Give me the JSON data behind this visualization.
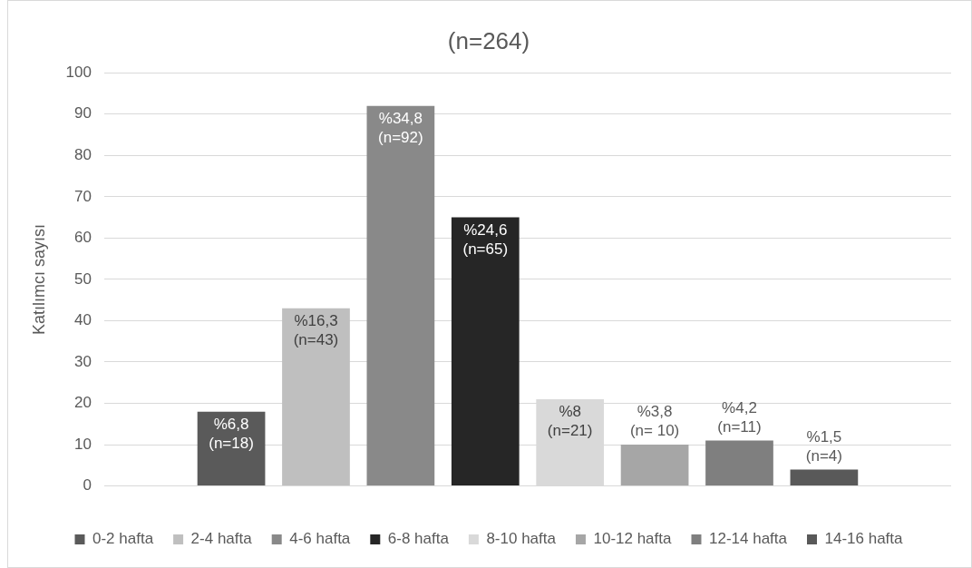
{
  "chart_data": {
    "type": "bar",
    "title": "(n=264)",
    "ylabel": "Katılımcı sayısı",
    "categories": [
      null
    ],
    "series": [
      {
        "name": "0-2 hafta",
        "color": "#5a5a5a",
        "values": [
          18
        ],
        "value_labels": [
          "%6,8\n(n=18)"
        ]
      },
      {
        "name": "2-4 hafta",
        "color": "#bfbfbf",
        "values": [
          43
        ],
        "value_labels": [
          "%16,3\n(n=43)"
        ]
      },
      {
        "name": "4-6 hafta",
        "color": "#898989",
        "values": [
          92
        ],
        "value_labels": [
          "%34,8\n(n=92)"
        ]
      },
      {
        "name": "6-8 hafta",
        "color": "#262626",
        "values": [
          65
        ],
        "value_labels": [
          "%24,6\n(n=65)"
        ]
      },
      {
        "name": "8-10 hafta",
        "color": "#d9d9d9",
        "values": [
          21
        ],
        "value_labels": [
          "%8\n(n=21)"
        ]
      },
      {
        "name": "10-12 hafta",
        "color": "#a6a6a6",
        "values": [
          10
        ],
        "value_labels": [
          "%3,8\n(n= 10)"
        ]
      },
      {
        "name": "12-14 hafta",
        "color": "#7f7f7f",
        "values": [
          11
        ],
        "value_labels": [
          "%4,2\n(n=11)"
        ]
      },
      {
        "name": "14-16 hafta",
        "color": "#595959",
        "values": [
          4
        ],
        "value_labels": [
          "%1,5\n(n=4)"
        ]
      }
    ],
    "ylim": [
      0,
      100
    ],
    "yticks": [
      0,
      10,
      20,
      30,
      40,
      50,
      60,
      70,
      80,
      90,
      100
    ],
    "grid": "y",
    "legend": "bottom"
  }
}
